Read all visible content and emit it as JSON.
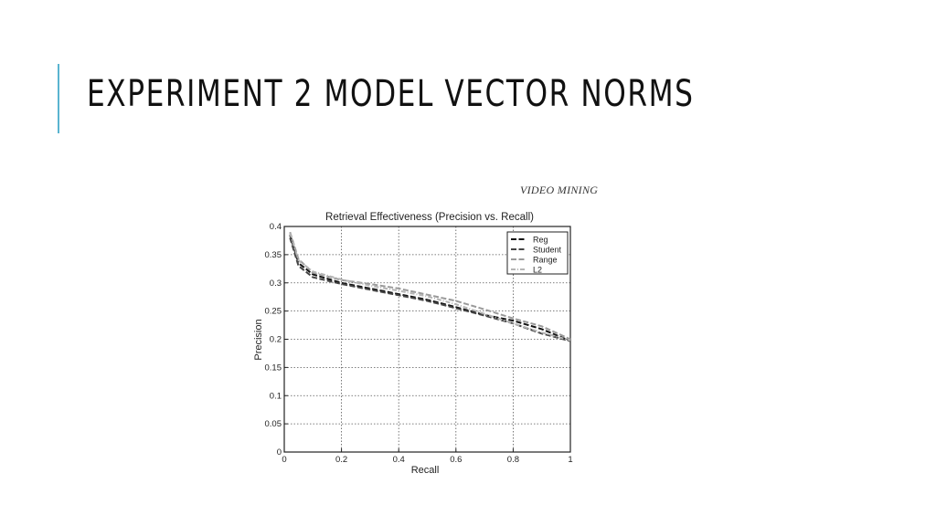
{
  "slide": {
    "title": "EXPERIMENT 2 MODEL VECTOR NORMS",
    "accent_color": "#5ab4d0"
  },
  "figure": {
    "header_note": "VIDEO MINING"
  },
  "chart_data": {
    "type": "line",
    "title": "Retrieval Effectiveness (Precision vs. Recall)",
    "xlabel": "Recall",
    "ylabel": "Precision",
    "xlim": [
      0,
      1
    ],
    "ylim": [
      0,
      0.4
    ],
    "x_ticks": [
      "0",
      "0.2",
      "0.4",
      "0.6",
      "0.8",
      "1"
    ],
    "y_ticks": [
      "0",
      "0.05",
      "0.1",
      "0.15",
      "0.2",
      "0.25",
      "0.3",
      "0.35",
      "0.4"
    ],
    "grid": true,
    "legend_position": "top-right",
    "series": [
      {
        "name": "Reg",
        "color": "#111111",
        "style": "dashed",
        "points": [
          [
            0.02,
            0.385
          ],
          [
            0.05,
            0.335
          ],
          [
            0.1,
            0.315
          ],
          [
            0.2,
            0.3
          ],
          [
            0.3,
            0.29
          ],
          [
            0.4,
            0.28
          ],
          [
            0.5,
            0.27
          ],
          [
            0.6,
            0.257
          ],
          [
            0.7,
            0.243
          ],
          [
            0.8,
            0.233
          ],
          [
            0.9,
            0.218
          ],
          [
            1.0,
            0.197
          ]
        ]
      },
      {
        "name": "Student",
        "color": "#444444",
        "style": "dashed",
        "points": [
          [
            0.02,
            0.38
          ],
          [
            0.05,
            0.33
          ],
          [
            0.1,
            0.31
          ],
          [
            0.2,
            0.298
          ],
          [
            0.3,
            0.288
          ],
          [
            0.4,
            0.278
          ],
          [
            0.5,
            0.268
          ],
          [
            0.6,
            0.255
          ],
          [
            0.7,
            0.242
          ],
          [
            0.8,
            0.228
          ],
          [
            0.9,
            0.21
          ],
          [
            1.0,
            0.197
          ]
        ]
      },
      {
        "name": "Range",
        "color": "#9a9a9a",
        "style": "dashed",
        "points": [
          [
            0.02,
            0.39
          ],
          [
            0.05,
            0.342
          ],
          [
            0.1,
            0.318
          ],
          [
            0.2,
            0.305
          ],
          [
            0.3,
            0.298
          ],
          [
            0.4,
            0.29
          ],
          [
            0.5,
            0.279
          ],
          [
            0.6,
            0.268
          ],
          [
            0.7,
            0.253
          ],
          [
            0.8,
            0.237
          ],
          [
            0.9,
            0.223
          ],
          [
            1.0,
            0.2
          ]
        ]
      },
      {
        "name": "L2",
        "color": "#b5b5b5",
        "style": "dashdot",
        "points": [
          [
            0.02,
            0.388
          ],
          [
            0.05,
            0.34
          ],
          [
            0.1,
            0.32
          ],
          [
            0.2,
            0.306
          ],
          [
            0.3,
            0.295
          ],
          [
            0.4,
            0.286
          ],
          [
            0.5,
            0.276
          ],
          [
            0.6,
            0.262
          ],
          [
            0.7,
            0.245
          ],
          [
            0.8,
            0.228
          ],
          [
            0.9,
            0.212
          ],
          [
            1.0,
            0.198
          ]
        ]
      }
    ]
  }
}
